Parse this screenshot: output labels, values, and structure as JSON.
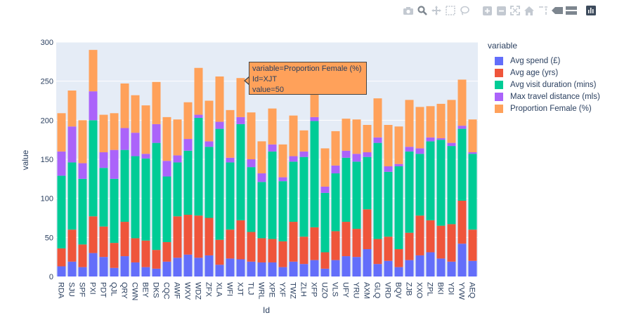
{
  "toolbar": {
    "icons": [
      "camera-icon",
      "zoom-icon",
      "pan-icon",
      "box-select-icon",
      "lasso-icon",
      "zoom-in-icon",
      "zoom-out-icon",
      "autoscale-icon",
      "home-icon",
      "spike-lines-icon",
      "hover-closest-icon",
      "hover-compare-icon",
      "plotly-logo-icon"
    ]
  },
  "colors": {
    "plot_bg": "#e5ecf6",
    "grid": "#ffffff",
    "text": "#2a3f5f"
  },
  "legend": {
    "title": "variable"
  },
  "tooltip": {
    "line1": "variable=Proportion Female (%)",
    "line2": "Id=XJT",
    "line3": "value=50",
    "color": "#ffa15a"
  },
  "chart_data": {
    "type": "bar",
    "barmode": "stack",
    "xlabel": "Id",
    "ylabel": "value",
    "ylim": [
      0,
      300
    ],
    "yticks": [
      0,
      50,
      100,
      150,
      200,
      250,
      300
    ],
    "grid": true,
    "legend_position": "right",
    "categories": [
      "RDA",
      "SJU",
      "SPF",
      "PXI",
      "PDT",
      "QJL",
      "QRY",
      "CWN",
      "BEY",
      "DKS",
      "CQC",
      "AWF",
      "WXV",
      "WDZ",
      "ZFX",
      "XLA",
      "WFI",
      "XJT",
      "TLJ",
      "WRL",
      "XPE",
      "YXF",
      "TWZ",
      "ZLH",
      "XFP",
      "UZO",
      "VLS",
      "UFY",
      "YRU",
      "AXM",
      "GLQ",
      "VRD",
      "BQV",
      "ZJB",
      "XXO",
      "ZPL",
      "BKI",
      "YDI",
      "YVW",
      "AEQ"
    ],
    "series": [
      {
        "name": "Avg spend (£)",
        "color": "#636efa",
        "values": [
          13,
          19,
          12,
          30,
          25,
          11,
          26,
          18,
          12,
          10,
          19,
          24,
          28,
          24,
          27,
          15,
          23,
          22,
          19,
          18,
          18,
          12,
          19,
          16,
          21,
          10,
          21,
          26,
          25,
          35,
          16,
          20,
          12,
          21,
          27,
          31,
          23,
          19,
          42,
          20
        ]
      },
      {
        "name": "Avg age (yrs)",
        "color": "#ef553b",
        "values": [
          23,
          41,
          29,
          47,
          39,
          32,
          44,
          31,
          34,
          24,
          25,
          53,
          51,
          54,
          48,
          32,
          37,
          50,
          38,
          31,
          30,
          33,
          51,
          35,
          42,
          21,
          37,
          44,
          36,
          51,
          32,
          31,
          23,
          35,
          51,
          41,
          42,
          48,
          55,
          40
        ]
      },
      {
        "name": "Avg visit duration (mins)",
        "color": "#00cc96",
        "values": [
          93,
          86,
          84,
          123,
          75,
          82,
          92,
          105,
          105,
          137,
          84,
          69,
          82,
          125,
          91,
          142,
          86,
          123,
          83,
          72,
          112,
          77,
          77,
          102,
          136,
          76,
          74,
          82,
          86,
          67,
          123,
          83,
          106,
          104,
          79,
          101,
          110,
          100,
          92,
          97
        ]
      },
      {
        "name": "Max travel distance (mls)",
        "color": "#ab63fa",
        "values": [
          31,
          46,
          20,
          37,
          20,
          37,
          28,
          30,
          6,
          24,
          20,
          9,
          15,
          4,
          7,
          9,
          6,
          9,
          10,
          11,
          9,
          5,
          7,
          7,
          5,
          8,
          10,
          9,
          10,
          6,
          7,
          7,
          3,
          6,
          7,
          5,
          2,
          4,
          4,
          2
        ]
      },
      {
        "name": "Proportion Female (%)",
        "color": "#ffa15a",
        "values": [
          49,
          46,
          55,
          53,
          48,
          47,
          57,
          48,
          62,
          54,
          56,
          46,
          47,
          60,
          52,
          58,
          61,
          50,
          60,
          41,
          46,
          42,
          52,
          27,
          40,
          49,
          44,
          41,
          44,
          35,
          50,
          53,
          48,
          60,
          53,
          40,
          44,
          55,
          59,
          42
        ]
      }
    ]
  }
}
